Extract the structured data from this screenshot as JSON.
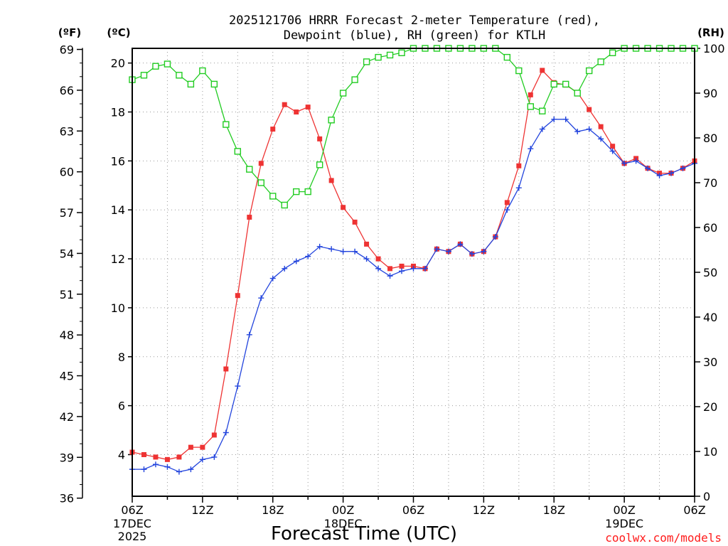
{
  "chart_data": {
    "type": "line",
    "title_line1": "2025121706 HRRR Forecast 2-meter Temperature (red),",
    "title_line2": "Dewpoint (blue), RH (green) for KTLH",
    "xlabel": "Forecast Time (UTC)",
    "credit": "coolwx.com/models",
    "left_unit_f": "(ºF)",
    "left_unit_c": "(ºC)",
    "right_unit": "(RH)",
    "x_range_hours": [
      0,
      48
    ],
    "c_range": [
      2.3,
      20.6
    ],
    "rh_range": [
      0,
      100
    ],
    "f_ticks": [
      "36",
      "39",
      "42",
      "45",
      "48",
      "51",
      "54",
      "57",
      "60",
      "63",
      "66",
      "69"
    ],
    "c_ticks": [
      "4",
      "6",
      "8",
      "10",
      "12",
      "14",
      "16",
      "18",
      "20"
    ],
    "rh_ticks": [
      "0",
      "10",
      "20",
      "30",
      "40",
      "50",
      "60",
      "70",
      "80",
      "90",
      "100"
    ],
    "x_ticks": [
      {
        "h": 0,
        "label": "06Z",
        "sub1": "17DEC",
        "sub2": "2025"
      },
      {
        "h": 6,
        "label": "12Z",
        "sub1": "",
        "sub2": ""
      },
      {
        "h": 12,
        "label": "18Z",
        "sub1": "",
        "sub2": ""
      },
      {
        "h": 18,
        "label": "00Z",
        "sub1": "18DEC",
        "sub2": ""
      },
      {
        "h": 24,
        "label": "06Z",
        "sub1": "",
        "sub2": ""
      },
      {
        "h": 30,
        "label": "12Z",
        "sub1": "",
        "sub2": ""
      },
      {
        "h": 36,
        "label": "18Z",
        "sub1": "",
        "sub2": ""
      },
      {
        "h": 42,
        "label": "00Z",
        "sub1": "19DEC",
        "sub2": ""
      },
      {
        "h": 48,
        "label": "06Z",
        "sub1": "",
        "sub2": ""
      }
    ],
    "series": [
      {
        "name": "Temperature",
        "unit": "C",
        "color": "#ee3333",
        "marker": "filled-square",
        "values": [
          4.1,
          4.0,
          3.9,
          3.8,
          3.9,
          4.3,
          4.3,
          4.8,
          7.5,
          10.5,
          13.7,
          15.9,
          17.3,
          18.3,
          18.0,
          18.2,
          16.9,
          15.2,
          14.1,
          13.5,
          12.6,
          12.0,
          11.6,
          11.7,
          11.7,
          11.6,
          12.4,
          12.3,
          12.6,
          12.2,
          12.3,
          12.9,
          14.3,
          15.8,
          18.7,
          19.7,
          19.2,
          19.1,
          18.8,
          18.1,
          17.4,
          16.6,
          15.9,
          16.1,
          15.7,
          15.5,
          15.5,
          15.7,
          16.0
        ]
      },
      {
        "name": "Dewpoint",
        "unit": "C",
        "color": "#2244dd",
        "marker": "plus",
        "values": [
          3.4,
          3.4,
          3.6,
          3.5,
          3.3,
          3.4,
          3.8,
          3.9,
          4.9,
          6.8,
          8.9,
          10.4,
          11.2,
          11.6,
          11.9,
          12.1,
          12.5,
          12.4,
          12.3,
          12.3,
          12.0,
          11.6,
          11.3,
          11.5,
          11.6,
          11.6,
          12.4,
          12.3,
          12.6,
          12.2,
          12.3,
          12.9,
          14.0,
          14.9,
          16.5,
          17.3,
          17.7,
          17.7,
          17.2,
          17.3,
          16.9,
          16.4,
          15.9,
          16.0,
          15.7,
          15.4,
          15.5,
          15.7,
          15.9
        ]
      },
      {
        "name": "RH",
        "unit": "%",
        "color": "#22cc22",
        "marker": "open-square",
        "values": [
          93,
          94,
          96,
          96.5,
          94,
          92,
          95,
          92,
          83,
          77,
          73,
          70,
          67,
          65,
          68,
          68,
          74,
          84,
          90,
          93,
          97,
          98,
          98.5,
          99,
          100,
          100,
          100,
          100,
          100,
          100,
          100,
          100,
          98,
          95,
          87,
          86,
          92,
          92,
          90,
          95,
          97,
          99,
          100,
          100,
          100,
          100,
          100,
          100,
          100
        ]
      }
    ]
  }
}
